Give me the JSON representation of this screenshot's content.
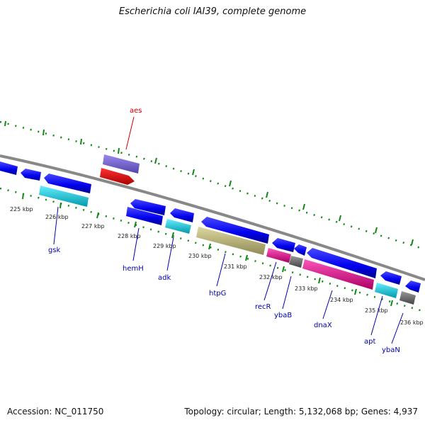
{
  "title": "Escherichia coli IAI39, complete genome",
  "footer": {
    "accession": "Accession: NC_011750",
    "summary": "Topology: circular; Length: 5,132,068 bp; Genes: 4,937"
  },
  "ticks": [
    "225 kbp",
    "226 kbp",
    "227 kbp",
    "228 kbp",
    "229 kbp",
    "230 kbp",
    "231 kbp",
    "232 kbp",
    "233 kbp",
    "234 kbp",
    "235 kbp",
    "236 kbp"
  ],
  "genes": [
    {
      "name": "aes",
      "color": "#cc0000"
    },
    {
      "name": "gsk",
      "color": "#0000aa"
    },
    {
      "name": "hemH",
      "color": "#0000aa"
    },
    {
      "name": "adk",
      "color": "#0000aa"
    },
    {
      "name": "htpG",
      "color": "#0000aa"
    },
    {
      "name": "recR",
      "color": "#0000aa"
    },
    {
      "name": "ybaB",
      "color": "#0000aa"
    },
    {
      "name": "dnaX",
      "color": "#0000aa"
    },
    {
      "name": "apt",
      "color": "#0000aa"
    },
    {
      "name": "ybaN",
      "color": "#0000aa"
    }
  ],
  "colors": {
    "cds": "#0000ee",
    "rna_purple": "#7766cc",
    "red": "#ee0000",
    "cyan": "#22ccdd",
    "olive": "#bbb477",
    "magenta": "#ee1199",
    "gray": "#777777",
    "backbone": "#888888",
    "tick": "#118811"
  }
}
